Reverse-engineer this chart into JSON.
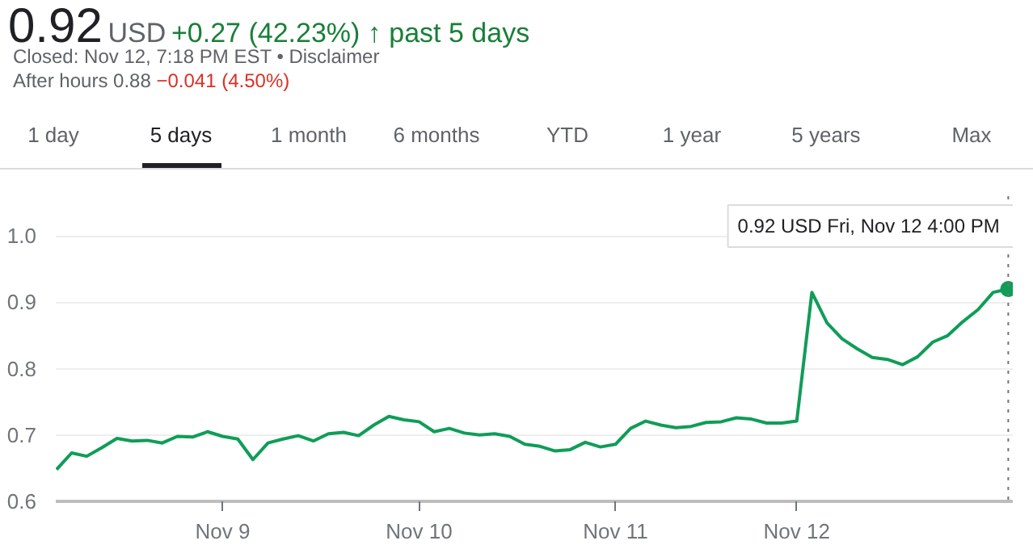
{
  "chart_data": {
    "type": "line",
    "annotations": [
      "0.92",
      "USD",
      "+0.27 (42.23%) ↑ past 5 days",
      "Closed: Nov 12, 7:18 PM EST • Disclaimer",
      "After hours 0.88",
      "−0.041 (4.50%)",
      "1 day",
      "5 days",
      "1 month",
      "6 months",
      "YTD",
      "1 year",
      "5 years",
      "Max",
      "0.92 USD  Fri, Nov 12 4:00 PM"
    ],
    "categories": [
      null,
      null,
      null,
      null,
      null,
      null,
      null,
      null,
      null,
      null,
      null,
      "Nov 9",
      null,
      null,
      null,
      null,
      null,
      null,
      null,
      null,
      null,
      null,
      null,
      null,
      "Nov 10",
      null,
      null,
      null,
      null,
      null,
      null,
      null,
      null,
      null,
      null,
      null,
      null,
      "Nov 11",
      null,
      null,
      null,
      null,
      null,
      null,
      null,
      null,
      null,
      null,
      null,
      "Nov 12",
      null,
      null,
      null,
      null,
      null,
      null,
      null,
      null,
      null,
      null,
      null,
      null,
      null,
      null
    ],
    "series": [
      {
        "color": "#0f9d58",
        "values": [
          0.648,
          0.673,
          0.668,
          0.681,
          0.695,
          0.691,
          0.692,
          0.688,
          0.698,
          0.697,
          0.705,
          0.698,
          0.694,
          0.663,
          0.688,
          0.694,
          0.699,
          0.691,
          0.702,
          0.704,
          0.699,
          0.715,
          0.728,
          0.723,
          0.72,
          0.705,
          0.71,
          0.703,
          0.7,
          0.702,
          0.698,
          0.686,
          0.683,
          0.676,
          0.678,
          0.689,
          0.682,
          0.686,
          0.71,
          0.721,
          0.715,
          0.711,
          0.713,
          0.719,
          0.72,
          0.726,
          0.724,
          0.718,
          0.718,
          0.721,
          0.915,
          0.869,
          0.845,
          0.83,
          0.817,
          0.814,
          0.806,
          0.818,
          0.84,
          0.85,
          0.871,
          0.889,
          0.915,
          0.92
        ]
      }
    ],
    "ylim": [
      0.6,
      1.06
    ],
    "yticks": [
      0.6,
      0.7,
      0.8,
      0.9,
      {
        "value": 1.0,
        "label": "1.0"
      }
    ],
    "grid": "y",
    "marker": "none",
    "line_style": "solid"
  }
}
